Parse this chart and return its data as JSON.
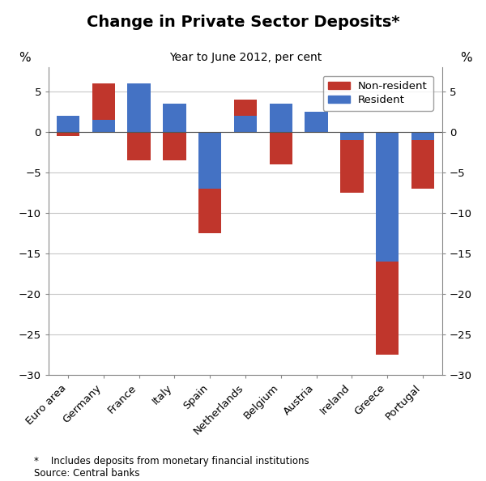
{
  "title": "Change in Private Sector Deposits*",
  "subtitle": "Year to June 2012, per cent",
  "categories": [
    "Euro area",
    "Germany",
    "France",
    "Italy",
    "Spain",
    "Netherlands",
    "Belgium",
    "Austria",
    "Ireland",
    "Greece",
    "Portugal"
  ],
  "resident": [
    2.0,
    1.5,
    6.0,
    3.5,
    -7.0,
    2.0,
    3.5,
    2.5,
    -1.0,
    -16.0,
    -1.0
  ],
  "non_resident": [
    -0.5,
    4.5,
    -3.5,
    -3.5,
    -5.5,
    2.0,
    -4.0,
    0.0,
    -6.5,
    -11.5,
    -6.0
  ],
  "resident_color": "#4472C4",
  "non_resident_color": "#C0362C",
  "ylim": [
    -30,
    8
  ],
  "yticks": [
    -30,
    -25,
    -20,
    -15,
    -10,
    -5,
    0,
    5
  ],
  "ylabel": "%",
  "footnote": "*    Includes deposits from monetary financial institutions\nSource: Central banks",
  "legend_labels": [
    "Non-resident",
    "Resident"
  ],
  "background_color": "#ffffff",
  "grid_color": "#c8c8c8"
}
